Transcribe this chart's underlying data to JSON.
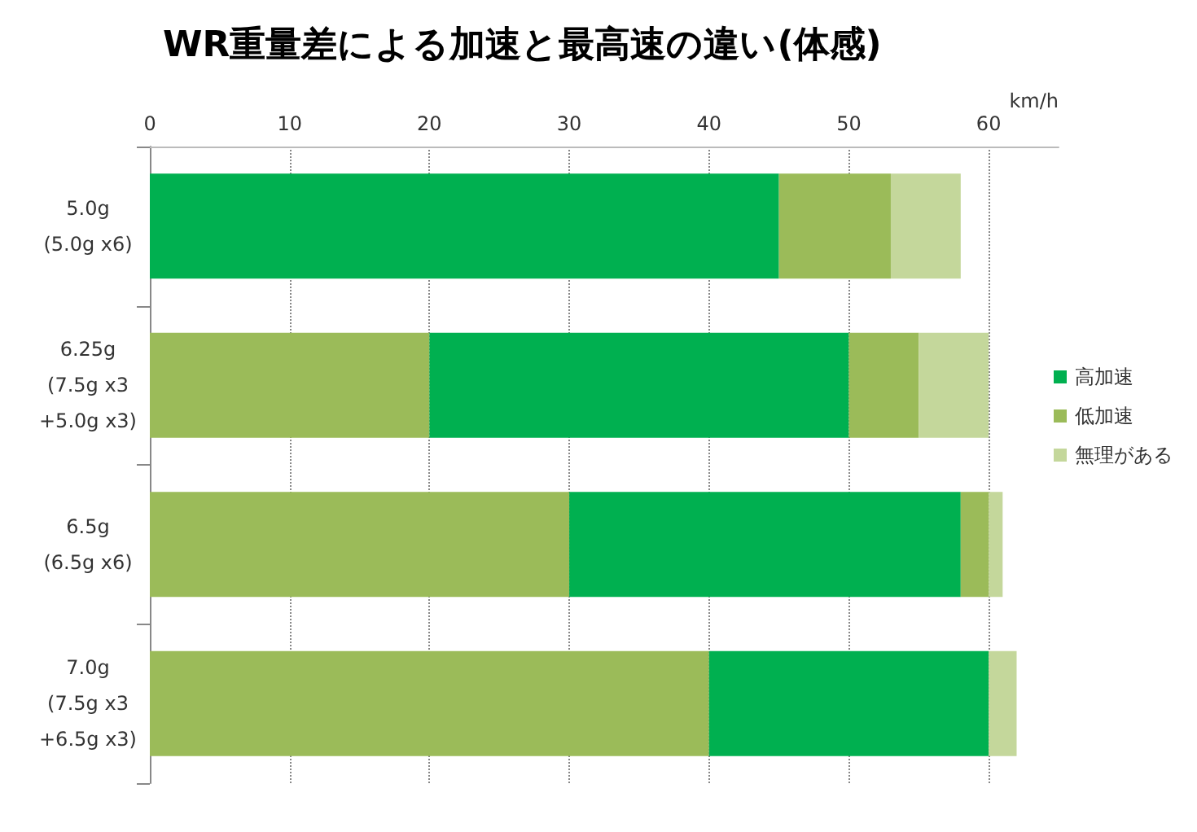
{
  "chart_data": {
    "type": "bar",
    "orientation": "horizontal",
    "stacked": true,
    "title": "WR重量差による加速と最高速の違い(体感)",
    "xlabel": "km/h",
    "categories": [
      "5.0g\n(5.0g x6)",
      "6.25g\n(7.5g x3\n+5.0g x3)",
      "6.5g\n(6.5g x6)",
      "7.0g\n(7.5g x3\n+6.5g x3)"
    ],
    "series": [
      {
        "name": "高加速",
        "color": "#00b050",
        "values": [
          45,
          null,
          null,
          null
        ]
      },
      {
        "name": "低加速",
        "color": "#9bbb59",
        "values": [
          8,
          20,
          30,
          40
        ]
      },
      {
        "color": "#00b050",
        "values": [
          null,
          30,
          28,
          20
        ]
      },
      {
        "color": "#9bbb59",
        "values": [
          null,
          5,
          2,
          null
        ]
      },
      {
        "name": "無理がある",
        "color": "#c4d79b",
        "values": [
          5,
          5,
          1,
          2
        ]
      }
    ],
    "xlim": [
      0,
      65
    ],
    "xticks": [
      0,
      10,
      20,
      30,
      40,
      50,
      60
    ],
    "grid": "x",
    "legend": "right"
  }
}
